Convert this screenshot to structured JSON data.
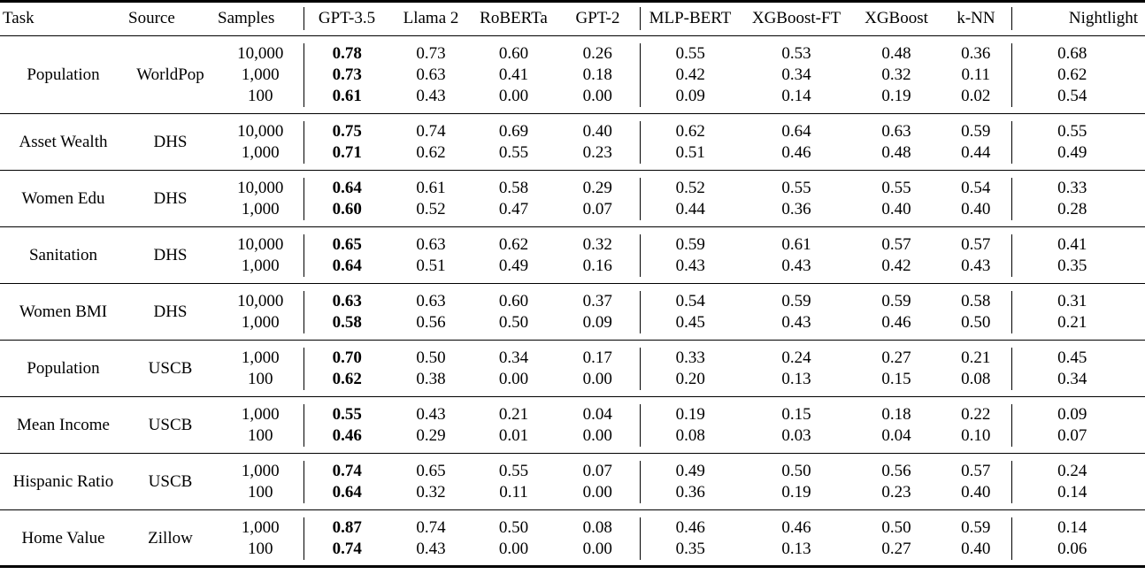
{
  "table": {
    "column_labels": [
      "Task",
      "Source",
      "Samples",
      "GPT-3.5",
      "Llama 2",
      "RoBERTa",
      "GPT-2",
      "MLP-BERT",
      "XGBoost-FT",
      "XGBoost",
      "k-NN",
      "Nightlight"
    ],
    "value_column_keys": [
      "gpt-3.5",
      "llama-2",
      "roberta",
      "gpt-2",
      "mlp-bert",
      "xgboost-ft",
      "xgboost",
      "k-nn",
      "nightlight"
    ],
    "bold_column": "GPT-3.5",
    "groups": [
      {
        "task": "Population",
        "source": "WorldPop",
        "rows": [
          {
            "samples": "10,000",
            "values": [
              "0.78",
              "0.73",
              "0.60",
              "0.26",
              "0.55",
              "0.53",
              "0.48",
              "0.36",
              "0.68"
            ]
          },
          {
            "samples": "1,000",
            "values": [
              "0.73",
              "0.63",
              "0.41",
              "0.18",
              "0.42",
              "0.34",
              "0.32",
              "0.11",
              "0.62"
            ]
          },
          {
            "samples": "100",
            "values": [
              "0.61",
              "0.43",
              "0.00",
              "0.00",
              "0.09",
              "0.14",
              "0.19",
              "0.02",
              "0.54"
            ]
          }
        ]
      },
      {
        "task": "Asset Wealth",
        "source": "DHS",
        "rows": [
          {
            "samples": "10,000",
            "values": [
              "0.75",
              "0.74",
              "0.69",
              "0.40",
              "0.62",
              "0.64",
              "0.63",
              "0.59",
              "0.55"
            ]
          },
          {
            "samples": "1,000",
            "values": [
              "0.71",
              "0.62",
              "0.55",
              "0.23",
              "0.51",
              "0.46",
              "0.48",
              "0.44",
              "0.49"
            ]
          }
        ]
      },
      {
        "task": "Women Edu",
        "source": "DHS",
        "rows": [
          {
            "samples": "10,000",
            "values": [
              "0.64",
              "0.61",
              "0.58",
              "0.29",
              "0.52",
              "0.55",
              "0.55",
              "0.54",
              "0.33"
            ]
          },
          {
            "samples": "1,000",
            "values": [
              "0.60",
              "0.52",
              "0.47",
              "0.07",
              "0.44",
              "0.36",
              "0.40",
              "0.40",
              "0.28"
            ]
          }
        ]
      },
      {
        "task": "Sanitation",
        "source": "DHS",
        "rows": [
          {
            "samples": "10,000",
            "values": [
              "0.65",
              "0.63",
              "0.62",
              "0.32",
              "0.59",
              "0.61",
              "0.57",
              "0.57",
              "0.41"
            ]
          },
          {
            "samples": "1,000",
            "values": [
              "0.64",
              "0.51",
              "0.49",
              "0.16",
              "0.43",
              "0.43",
              "0.42",
              "0.43",
              "0.35"
            ]
          }
        ]
      },
      {
        "task": "Women BMI",
        "source": "DHS",
        "rows": [
          {
            "samples": "10,000",
            "values": [
              "0.63",
              "0.63",
              "0.60",
              "0.37",
              "0.54",
              "0.59",
              "0.59",
              "0.58",
              "0.31"
            ]
          },
          {
            "samples": "1,000",
            "values": [
              "0.58",
              "0.56",
              "0.50",
              "0.09",
              "0.45",
              "0.43",
              "0.46",
              "0.50",
              "0.21"
            ]
          }
        ]
      },
      {
        "task": "Population",
        "source": "USCB",
        "rows": [
          {
            "samples": "1,000",
            "values": [
              "0.70",
              "0.50",
              "0.34",
              "0.17",
              "0.33",
              "0.24",
              "0.27",
              "0.21",
              "0.45"
            ]
          },
          {
            "samples": "100",
            "values": [
              "0.62",
              "0.38",
              "0.00",
              "0.00",
              "0.20",
              "0.13",
              "0.15",
              "0.08",
              "0.34"
            ]
          }
        ]
      },
      {
        "task": "Mean Income",
        "source": "USCB",
        "rows": [
          {
            "samples": "1,000",
            "values": [
              "0.55",
              "0.43",
              "0.21",
              "0.04",
              "0.19",
              "0.15",
              "0.18",
              "0.22",
              "0.09"
            ]
          },
          {
            "samples": "100",
            "values": [
              "0.46",
              "0.29",
              "0.01",
              "0.00",
              "0.08",
              "0.03",
              "0.04",
              "0.10",
              "0.07"
            ]
          }
        ]
      },
      {
        "task": "Hispanic Ratio",
        "source": "USCB",
        "rows": [
          {
            "samples": "1,000",
            "values": [
              "0.74",
              "0.65",
              "0.55",
              "0.07",
              "0.49",
              "0.50",
              "0.56",
              "0.57",
              "0.24"
            ]
          },
          {
            "samples": "100",
            "values": [
              "0.64",
              "0.32",
              "0.11",
              "0.00",
              "0.36",
              "0.19",
              "0.23",
              "0.40",
              "0.14"
            ]
          }
        ]
      },
      {
        "task": "Home Value",
        "source": "Zillow",
        "rows": [
          {
            "samples": "1,000",
            "values": [
              "0.87",
              "0.74",
              "0.50",
              "0.08",
              "0.46",
              "0.46",
              "0.50",
              "0.59",
              "0.14"
            ]
          },
          {
            "samples": "100",
            "values": [
              "0.74",
              "0.43",
              "0.00",
              "0.00",
              "0.35",
              "0.13",
              "0.27",
              "0.40",
              "0.06"
            ]
          }
        ]
      }
    ]
  }
}
